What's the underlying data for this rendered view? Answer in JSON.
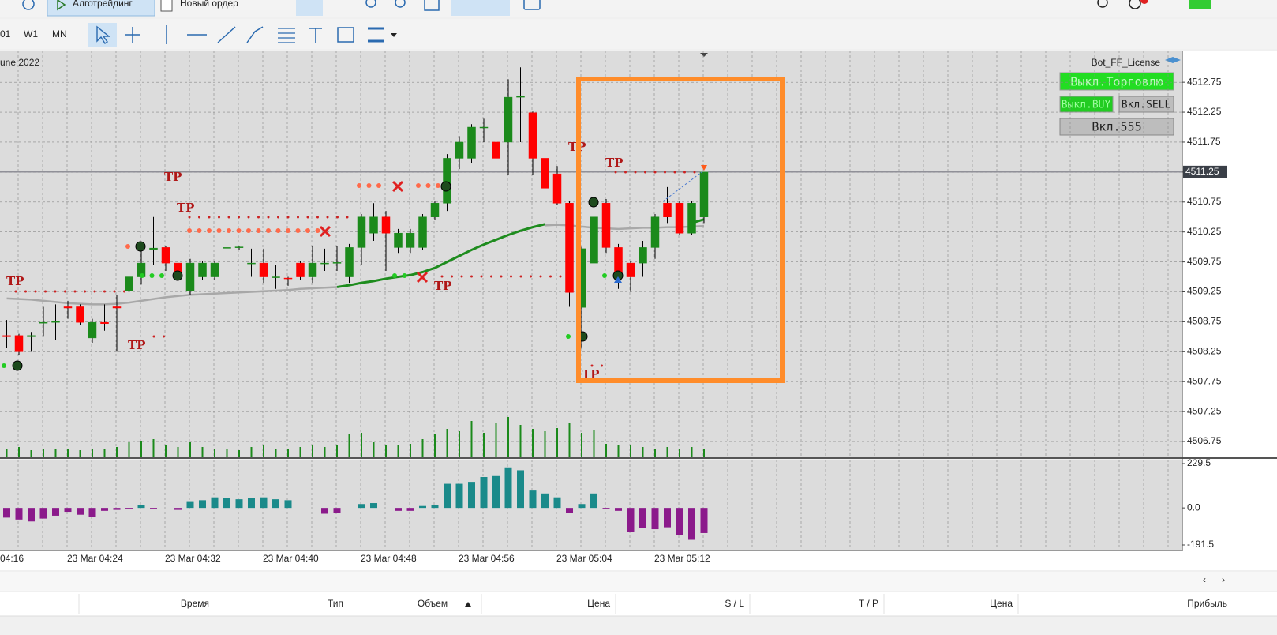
{
  "toolbar": {
    "buttons": [
      "Алготрейдинг",
      "Новый ордер"
    ],
    "timeframes": [
      "01",
      "W1",
      "MN"
    ]
  },
  "chart": {
    "date_label": "une 2022",
    "expert": "Bot_FF_License",
    "panel_buttons": [
      "Выкл.Торговлю",
      "Выкл.BUY",
      "Вкл.SELL",
      "Вкл.555"
    ],
    "ylim": [
      4506.5,
      4513.24
    ],
    "yticks": [
      4512.75,
      4512.25,
      4511.75,
      4511.25,
      4510.75,
      4510.25,
      4509.75,
      4509.25,
      4508.75,
      4508.25,
      4507.75,
      4507.25,
      4506.75
    ],
    "grid": true,
    "current_price": 4511.25,
    "x_labels": [
      "04:16",
      "23 Mar 04:24",
      "23 Mar 04:32",
      "23 Mar 04:40",
      "23 Mar 04:48",
      "23 Mar 04:56",
      "23 Mar 05:04",
      "23 Mar 05:12"
    ],
    "up_color": "#1b8a1b",
    "down_color": "#ff0000",
    "ohlc": [
      [
        4508.52,
        4508.78,
        4508.32,
        4508.5
      ],
      [
        4508.52,
        4508.55,
        4508.2,
        4508.25
      ],
      [
        4508.5,
        4508.58,
        4508.25,
        4508.52
      ],
      [
        4508.74,
        4509.0,
        4508.5,
        4508.74
      ],
      [
        4508.74,
        4509.04,
        4508.44,
        4508.76
      ],
      [
        4509.0,
        4509.1,
        4508.8,
        4508.98
      ],
      [
        4509.0,
        4509.04,
        4508.7,
        4508.74
      ],
      [
        4508.48,
        4508.8,
        4508.4,
        4508.74
      ],
      [
        4508.74,
        4509.04,
        4508.6,
        4508.72
      ],
      [
        4509.0,
        4509.2,
        4508.25,
        4508.98
      ],
      [
        4509.27,
        4509.73,
        4509.04,
        4509.5
      ],
      [
        4509.5,
        4510.04,
        4509.37,
        4509.73
      ],
      [
        4509.96,
        4510.5,
        4509.7,
        4509.98
      ],
      [
        4509.99,
        4510.02,
        4509.6,
        4509.73
      ],
      [
        4509.73,
        4509.8,
        4509.3,
        4509.5
      ],
      [
        4509.27,
        4509.8,
        4509.2,
        4509.73
      ],
      [
        4509.5,
        4509.76,
        4509.45,
        4509.73
      ],
      [
        4509.5,
        4509.76,
        4509.45,
        4509.73
      ],
      [
        4509.99,
        4510.02,
        4509.7,
        4509.99
      ],
      [
        4509.99,
        4510.02,
        4509.95,
        4510.0
      ],
      [
        4509.73,
        4509.97,
        4509.5,
        4509.73
      ],
      [
        4509.73,
        4509.97,
        4509.4,
        4509.5
      ],
      [
        4509.5,
        4509.7,
        4509.3,
        4509.5
      ],
      [
        4509.48,
        4509.5,
        4509.35,
        4509.47
      ],
      [
        4509.73,
        4509.76,
        4509.45,
        4509.5
      ],
      [
        4509.5,
        4510.02,
        4509.4,
        4509.73
      ],
      [
        4509.73,
        4509.97,
        4509.6,
        4509.73
      ],
      [
        4509.73,
        4510.02,
        4509.6,
        4509.74
      ],
      [
        4509.5,
        4510.05,
        4509.4,
        4509.99
      ],
      [
        4509.99,
        4510.55,
        4509.7,
        4510.5
      ],
      [
        4510.23,
        4510.73,
        4510.1,
        4510.5
      ],
      [
        4510.5,
        4510.6,
        4509.6,
        4510.23
      ],
      [
        4509.99,
        4510.3,
        4509.9,
        4510.23
      ],
      [
        4509.99,
        4510.3,
        4509.9,
        4510.23
      ],
      [
        4509.99,
        4510.55,
        4509.95,
        4510.5
      ],
      [
        4510.5,
        4510.76,
        4510.45,
        4510.73
      ],
      [
        4510.73,
        4511.55,
        4510.6,
        4511.48
      ],
      [
        4511.48,
        4511.85,
        4511.3,
        4511.75
      ],
      [
        4511.48,
        4512.05,
        4511.4,
        4512.0
      ],
      [
        4512.0,
        4512.14,
        4511.75,
        4512.0
      ],
      [
        4511.75,
        4511.8,
        4511.2,
        4511.48
      ],
      [
        4511.75,
        4512.8,
        4511.2,
        4512.5
      ],
      [
        4512.5,
        4513.0,
        4511.75,
        4512.52
      ],
      [
        4512.24,
        4512.26,
        4511.2,
        4511.48
      ],
      [
        4511.48,
        4511.6,
        4510.7,
        4510.98
      ],
      [
        4511.22,
        4511.35,
        4510.7,
        4510.73
      ],
      [
        4510.73,
        4510.76,
        4509.0,
        4509.24
      ],
      [
        4508.99,
        4510.0,
        4508.3,
        4509.97
      ],
      [
        4509.73,
        4510.73,
        4509.6,
        4510.5
      ],
      [
        4510.73,
        4510.8,
        4509.9,
        4509.99
      ],
      [
        4509.99,
        4510.05,
        4509.3,
        4509.5
      ],
      [
        4509.73,
        4509.76,
        4509.25,
        4509.5
      ],
      [
        4509.73,
        4510.1,
        4509.5,
        4509.99
      ],
      [
        4509.99,
        4510.55,
        4509.8,
        4510.5
      ],
      [
        4510.73,
        4511.0,
        4510.4,
        4510.5
      ],
      [
        4510.73,
        4510.76,
        4510.2,
        4510.23
      ],
      [
        4510.23,
        4510.76,
        4510.2,
        4510.73
      ],
      [
        4510.5,
        4511.25,
        4510.4,
        4511.25
      ]
    ],
    "volume": [
      10,
      12,
      8,
      10,
      9,
      9,
      8,
      10,
      9,
      12,
      18,
      20,
      22,
      15,
      12,
      18,
      12,
      10,
      10,
      8,
      12,
      15,
      10,
      10,
      12,
      14,
      12,
      15,
      28,
      30,
      18,
      14,
      14,
      16,
      22,
      28,
      35,
      32,
      45,
      30,
      42,
      50,
      40,
      35,
      32,
      36,
      42,
      30,
      34,
      16,
      14,
      14,
      12,
      10,
      12,
      10,
      12,
      10
    ],
    "volume_color": "#1b8a1b",
    "ma_slow": {
      "color": "#a8a8a8",
      "values": [
        4509.14,
        4509.13,
        4509.12,
        4509.1,
        4509.08,
        4509.06,
        4509.05,
        4509.04,
        4509.04,
        4509.05,
        4509.07,
        4509.1,
        4509.13,
        4509.16,
        4509.18,
        4509.2,
        4509.21,
        4509.22,
        4509.23,
        4509.24,
        4509.25,
        4509.26,
        4509.27,
        4509.28,
        4509.3,
        4509.31,
        4509.32,
        4509.33,
        null,
        null,
        null,
        null,
        null,
        null,
        null,
        null,
        null,
        null,
        null,
        null,
        null,
        null,
        null,
        null,
        4510.36,
        4510.37,
        4510.36,
        4510.34,
        4510.32,
        4510.31,
        4510.3,
        4510.31,
        4510.32,
        4510.32,
        4510.33,
        4510.33,
        4510.34,
        4510.35
      ]
    },
    "ma_fast": {
      "color": "#1e8c1e",
      "values": [
        null,
        null,
        null,
        null,
        null,
        null,
        null,
        null,
        null,
        null,
        null,
        null,
        null,
        null,
        null,
        null,
        null,
        null,
        null,
        null,
        null,
        null,
        null,
        null,
        null,
        null,
        null,
        4509.33,
        4509.36,
        4509.4,
        4509.43,
        4509.47,
        4509.5,
        4509.53,
        4509.58,
        4509.65,
        4509.75,
        4509.85,
        4509.95,
        4510.04,
        4510.12,
        4510.2,
        4510.27,
        4510.33,
        4510.38,
        null,
        null,
        null,
        null,
        null,
        null,
        null,
        null,
        null,
        null,
        null,
        4510.4,
        4510.46
      ]
    },
    "tp_labels": [
      "TP",
      "TP",
      "TP",
      "TP",
      "TP",
      "TP",
      "TP",
      "TP"
    ],
    "oscillator": {
      "ylim": [
        -191.5,
        229.5
      ],
      "yticks": [
        229.5,
        {
          "value": 0,
          "label": "0.0"
        },
        -191.5
      ],
      "positive_color": "#1a8a8a",
      "negative_color": "#8b1a8b",
      "values": [
        -50,
        -60,
        -70,
        -55,
        -40,
        -20,
        -35,
        -45,
        -15,
        -10,
        -5,
        15,
        -5,
        0,
        -10,
        35,
        40,
        55,
        50,
        45,
        50,
        55,
        45,
        40,
        0,
        0,
        -30,
        -25,
        0,
        20,
        25,
        0,
        -15,
        -15,
        10,
        15,
        125,
        125,
        135,
        160,
        165,
        210,
        195,
        90,
        75,
        55,
        -25,
        20,
        75,
        -5,
        -15,
        -125,
        -105,
        -110,
        -100,
        -140,
        -165,
        -130
      ]
    }
  },
  "table": {
    "headers": [
      "Время",
      "Тип",
      "Объем",
      "Цена",
      "S / L",
      "T / P",
      "Цена",
      "Прибыль"
    ]
  }
}
